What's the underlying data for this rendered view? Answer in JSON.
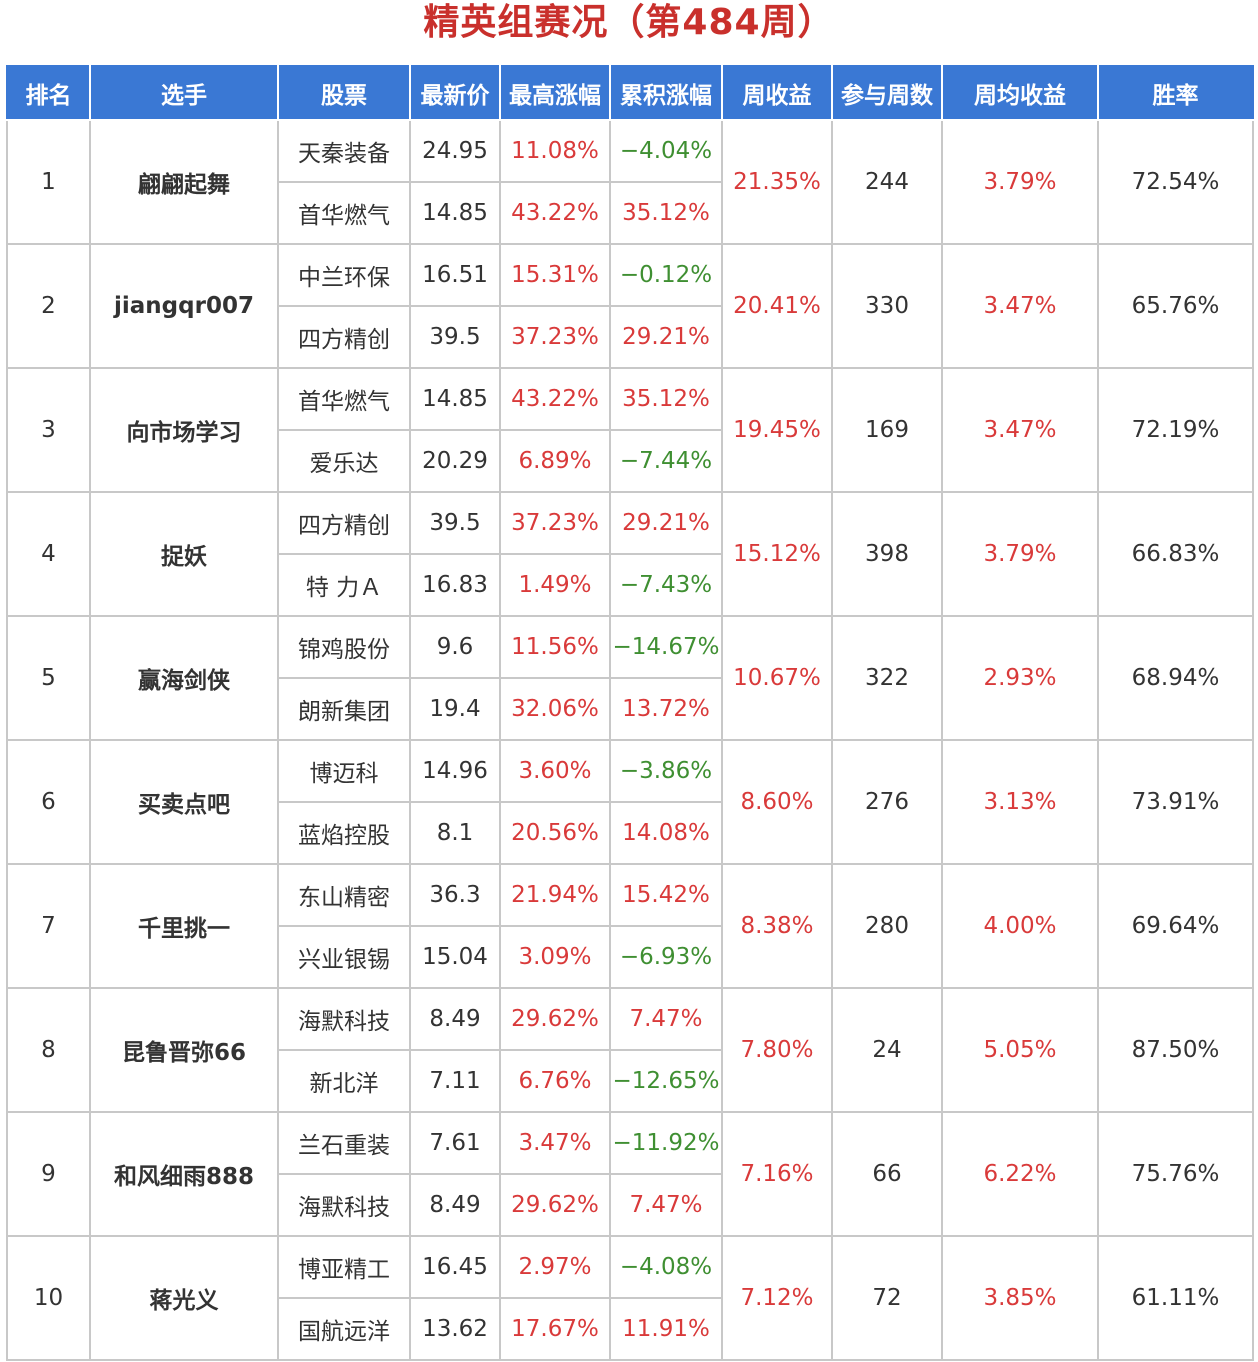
{
  "title": "精英组赛况（第484周）",
  "headers": [
    "排名",
    "选手",
    "股票",
    "最新价",
    "最高涨幅",
    "累积涨幅",
    "周收益",
    "参与周数",
    "周均收益",
    "胜率"
  ],
  "colors": {
    "header_bg": "#3a78d4",
    "title": "#c9302c",
    "positive": "#d93a3a",
    "negative": "#3f8f32",
    "link_blue": "#2f6fcf"
  },
  "rows": [
    {
      "rank": "1",
      "player": "翩翩起舞",
      "weekly_return": "21.35%",
      "weeks": "244",
      "avg_return": "3.79%",
      "win_rate": "72.54%",
      "stocks": [
        {
          "name": "天秦装备",
          "price": "24.95",
          "max_gain": "11.08%",
          "cum_gain": "−4.04%"
        },
        {
          "name": "首华燃气",
          "price": "14.85",
          "max_gain": "43.22%",
          "cum_gain": "35.12%"
        }
      ]
    },
    {
      "rank": "2",
      "player": "jiangqr007",
      "weekly_return": "20.41%",
      "weeks": "330",
      "avg_return": "3.47%",
      "win_rate": "65.76%",
      "stocks": [
        {
          "name": "中兰环保",
          "price": "16.51",
          "max_gain": "15.31%",
          "cum_gain": "−0.12%"
        },
        {
          "name": "四方精创",
          "price": "39.5",
          "max_gain": "37.23%",
          "cum_gain": "29.21%"
        }
      ]
    },
    {
      "rank": "3",
      "player": "向市场学习",
      "weekly_return": "19.45%",
      "weeks": "169",
      "avg_return": "3.47%",
      "win_rate": "72.19%",
      "stocks": [
        {
          "name": "首华燃气",
          "price": "14.85",
          "max_gain": "43.22%",
          "cum_gain": "35.12%"
        },
        {
          "name": "爱乐达",
          "price": "20.29",
          "max_gain": "6.89%",
          "cum_gain": "−7.44%"
        }
      ]
    },
    {
      "rank": "4",
      "player": "捉妖",
      "weekly_return": "15.12%",
      "weeks": "398",
      "avg_return": "3.79%",
      "win_rate": "66.83%",
      "stocks": [
        {
          "name": "四方精创",
          "price": "39.5",
          "max_gain": "37.23%",
          "cum_gain": "29.21%"
        },
        {
          "name": "特 力Ａ",
          "price": "16.83",
          "max_gain": "1.49%",
          "cum_gain": "−7.43%"
        }
      ]
    },
    {
      "rank": "5",
      "player": "赢海剑侠",
      "weekly_return": "10.67%",
      "weeks": "322",
      "avg_return": "2.93%",
      "win_rate": "68.94%",
      "stocks": [
        {
          "name": "锦鸡股份",
          "price": "9.6",
          "max_gain": "11.56%",
          "cum_gain": "−14.67%"
        },
        {
          "name": "朗新集团",
          "price": "19.4",
          "max_gain": "32.06%",
          "cum_gain": "13.72%"
        }
      ]
    },
    {
      "rank": "6",
      "player": "买卖点吧",
      "weekly_return": "8.60%",
      "weeks": "276",
      "avg_return": "3.13%",
      "win_rate": "73.91%",
      "stocks": [
        {
          "name": "博迈科",
          "price": "14.96",
          "max_gain": "3.60%",
          "cum_gain": "−3.86%"
        },
        {
          "name": "蓝焰控股",
          "price": "8.1",
          "max_gain": "20.56%",
          "cum_gain": "14.08%"
        }
      ]
    },
    {
      "rank": "7",
      "player": "千里挑一",
      "weekly_return": "8.38%",
      "weeks": "280",
      "avg_return": "4.00%",
      "win_rate": "69.64%",
      "stocks": [
        {
          "name": "东山精密",
          "price": "36.3",
          "max_gain": "21.94%",
          "cum_gain": "15.42%"
        },
        {
          "name": "兴业银锡",
          "price": "15.04",
          "max_gain": "3.09%",
          "cum_gain": "−6.93%"
        }
      ]
    },
    {
      "rank": "8",
      "player": "昆鲁晋弥66",
      "weekly_return": "7.80%",
      "weeks": "24",
      "avg_return": "5.05%",
      "win_rate": "87.50%",
      "stocks": [
        {
          "name": "海默科技",
          "price": "8.49",
          "max_gain": "29.62%",
          "cum_gain": "7.47%"
        },
        {
          "name": "新北洋",
          "price": "7.11",
          "max_gain": "6.76%",
          "cum_gain": "−12.65%"
        }
      ]
    },
    {
      "rank": "9",
      "player": "和风细雨888",
      "weekly_return": "7.16%",
      "weeks": "66",
      "avg_return": "6.22%",
      "win_rate": "75.76%",
      "stocks": [
        {
          "name": "兰石重装",
          "price": "7.61",
          "max_gain": "3.47%",
          "cum_gain": "−11.92%"
        },
        {
          "name": "海默科技",
          "price": "8.49",
          "max_gain": "29.62%",
          "cum_gain": "7.47%"
        }
      ]
    },
    {
      "rank": "10",
      "player": "蒋光义",
      "weekly_return": "7.12%",
      "weeks": "72",
      "avg_return": "3.85%",
      "win_rate": "61.11%",
      "stocks": [
        {
          "name": "博亚精工",
          "price": "16.45",
          "max_gain": "2.97%",
          "cum_gain": "−4.08%"
        },
        {
          "name": "国航远洋",
          "price": "13.62",
          "max_gain": "17.67%",
          "cum_gain": "11.91%"
        }
      ]
    }
  ]
}
